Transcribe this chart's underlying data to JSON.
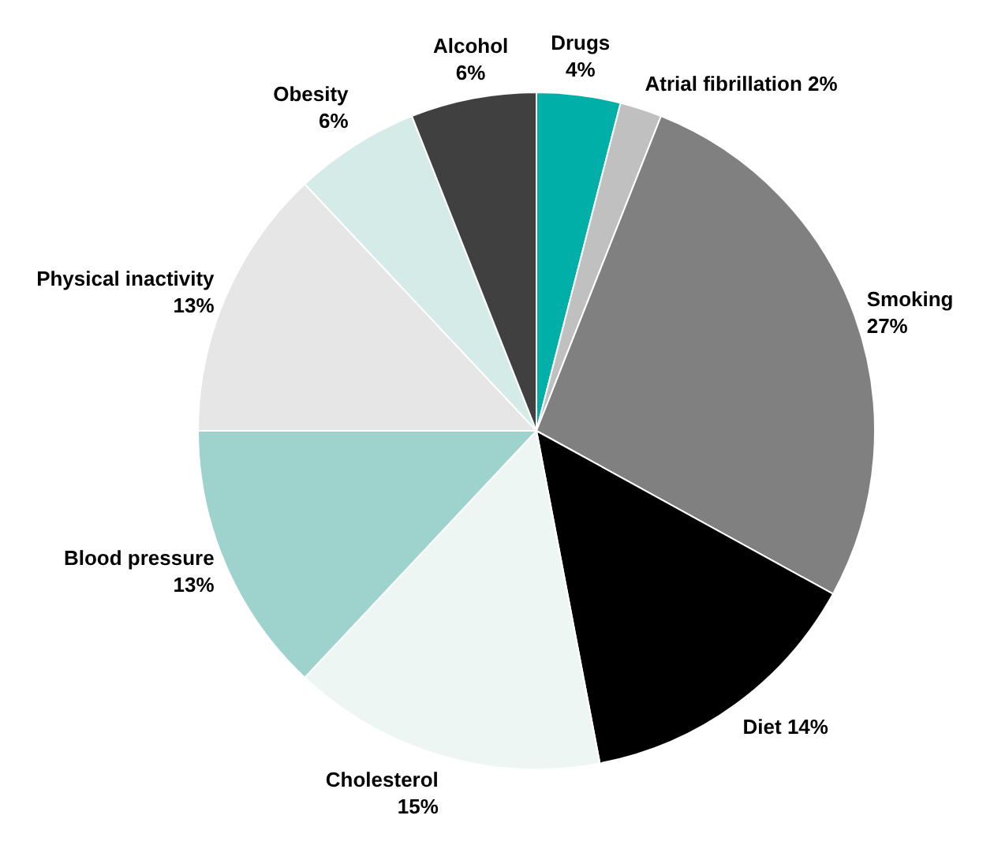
{
  "chart_data": {
    "type": "pie",
    "categories": [
      "Drugs",
      "Atrial fibrillation",
      "Smoking",
      "Diet",
      "Cholesterol",
      "Blood pressure",
      "Physical inactivity",
      "Obesity",
      "Alcohol"
    ],
    "values": [
      4,
      2,
      27,
      14,
      15,
      13,
      13,
      6,
      6
    ],
    "value_labels": [
      "4%",
      "2%",
      "27%",
      "14%",
      "15%",
      "13%",
      "13%",
      "6%",
      "6%"
    ],
    "colors": [
      "#00b0a8",
      "#c0c0c0",
      "#808080",
      "#000000",
      "#eef6f4",
      "#9dd3cc",
      "#e6e6e6",
      "#d4ebe7",
      "#404040"
    ],
    "legend": false
  }
}
